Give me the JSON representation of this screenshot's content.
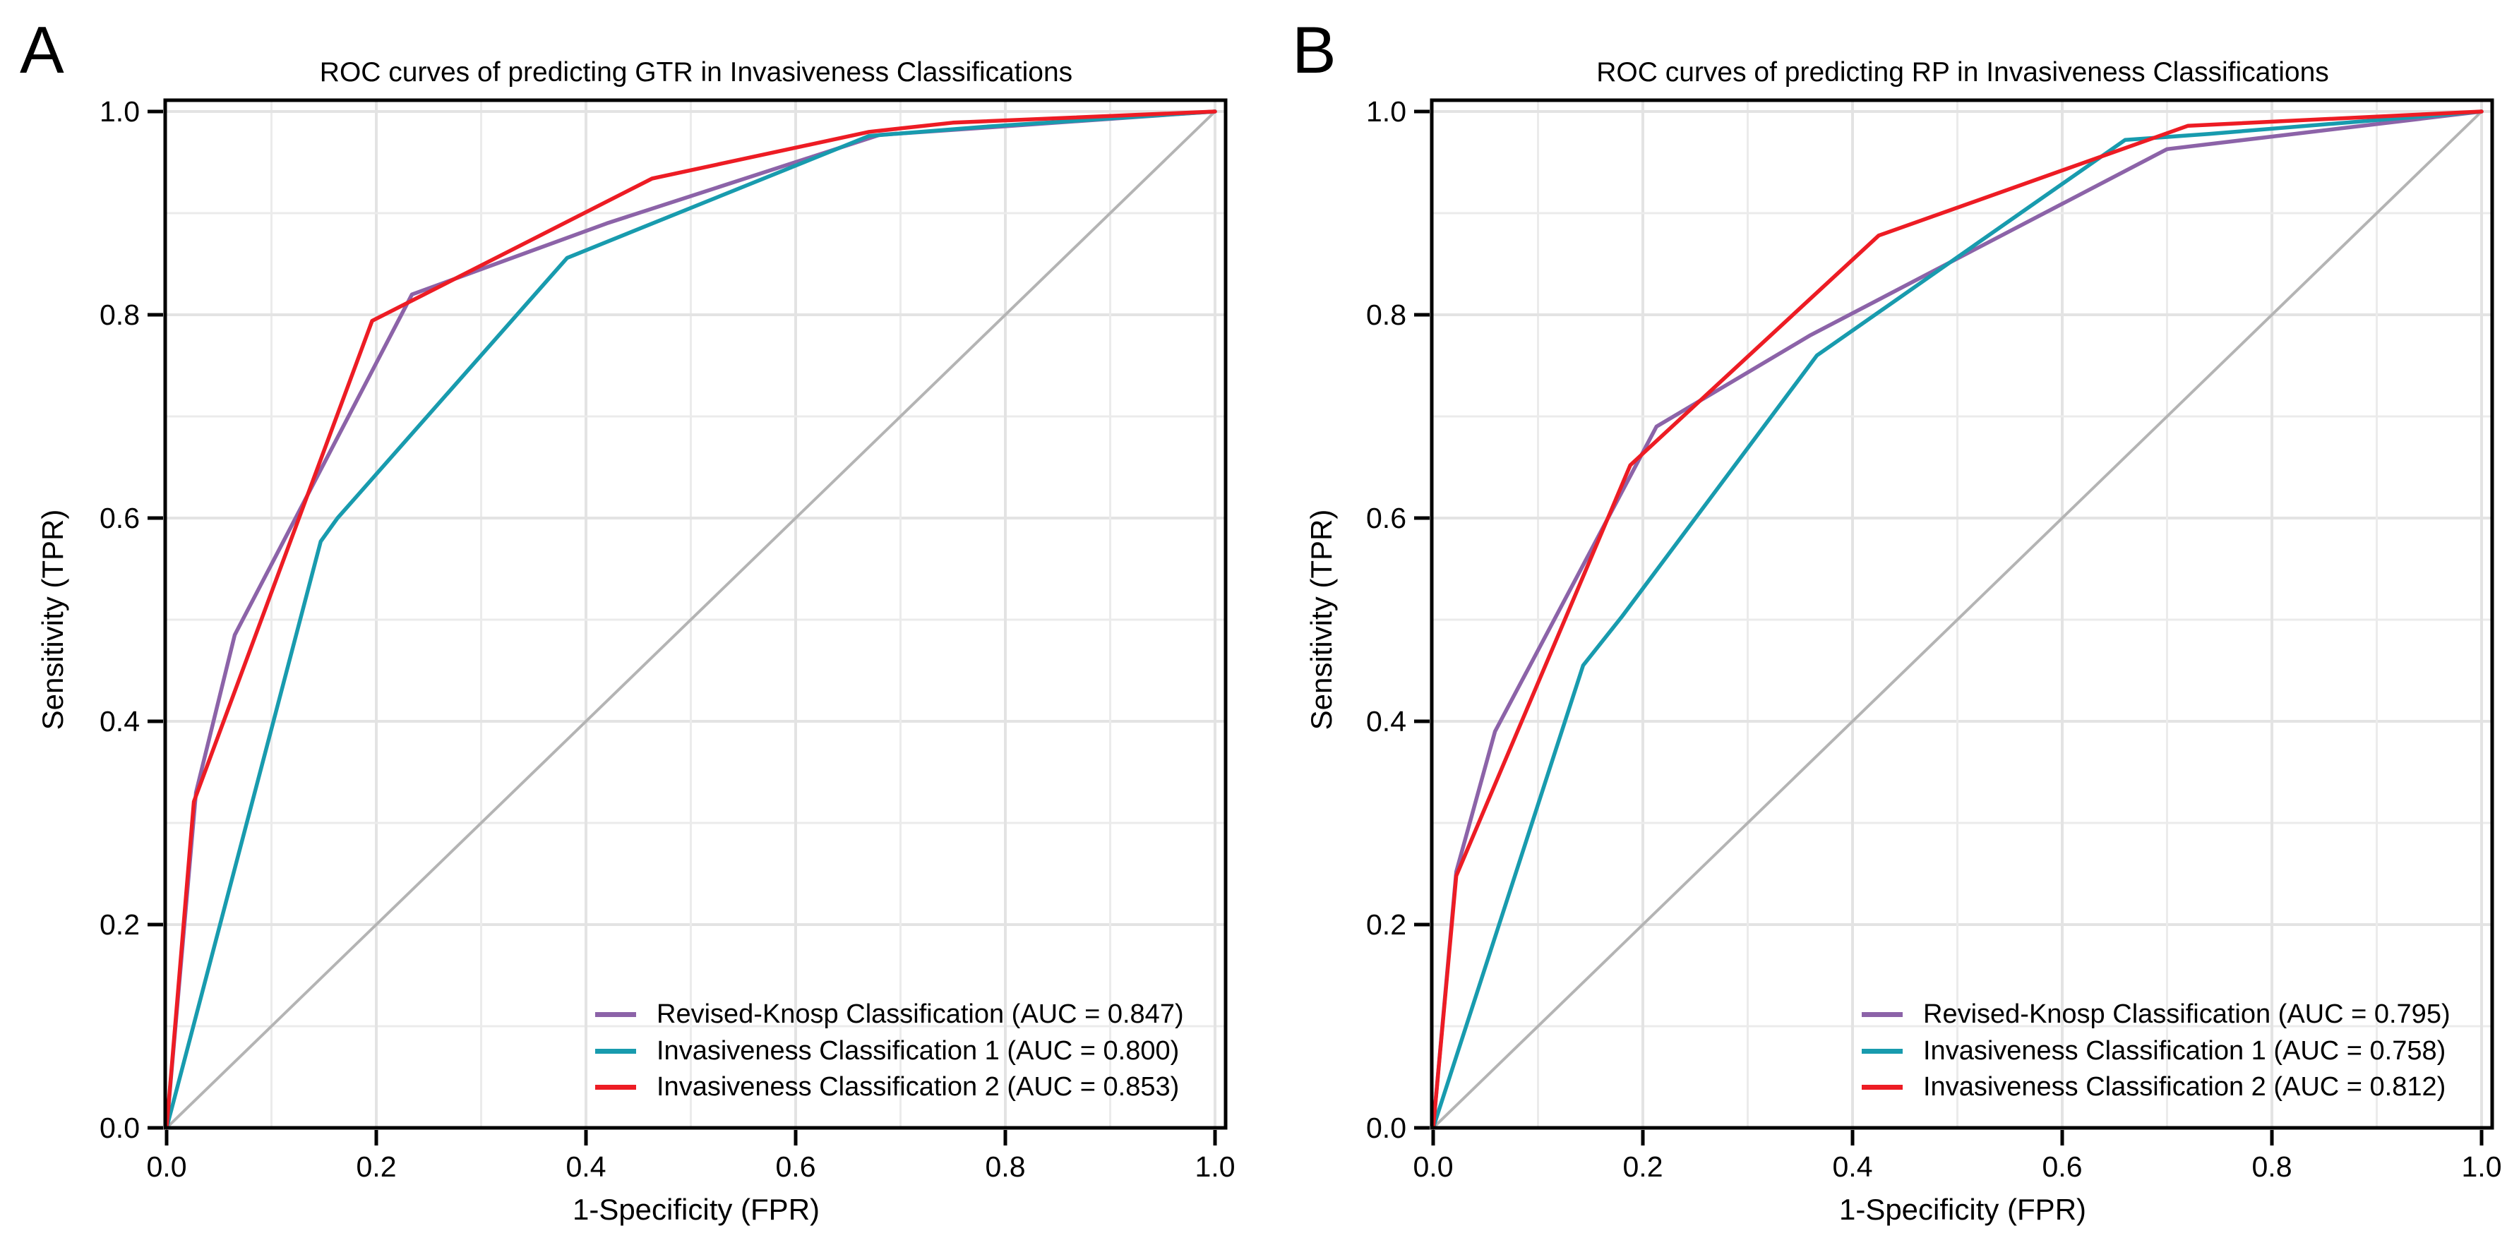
{
  "figure": {
    "panels": [
      {
        "letter": "A",
        "title": "ROC curves of predicting GTR in Invasiveness Classifications",
        "xlabel": "1-Specificity (FPR)",
        "ylabel": "Sensitivity (TPR)",
        "legend": [
          {
            "label": "Revised-Knosp Classification (AUC = 0.847)"
          },
          {
            "label": "Invasiveness Classification 1 (AUC = 0.800)"
          },
          {
            "label": "Invasiveness Classification 2 (AUC = 0.853)"
          }
        ]
      },
      {
        "letter": "B",
        "title": "ROC curves of predicting RP in Invasiveness Classifications",
        "xlabel": "1-Specificity (FPR)",
        "ylabel": "Sensitivity (TPR)",
        "legend": [
          {
            "label": "Revised-Knosp Classification (AUC = 0.795)"
          },
          {
            "label": "Invasiveness Classification 1 (AUC = 0.758)"
          },
          {
            "label": "Invasiveness Classification 2 (AUC = 0.812)"
          }
        ]
      }
    ]
  },
  "colors": {
    "revised_knosp": "#8c63a8",
    "invasiveness_1": "#189bae",
    "invasiveness_2": "#ed1c24",
    "reference_diagonal": "#b4b4b4",
    "gridline_major": "#e3e3e3",
    "gridline_minor": "#ebebeb",
    "frame": "#000000"
  },
  "chart_data": [
    {
      "type": "line",
      "title": "ROC curves of predicting GTR in Invasiveness Classifications",
      "xlabel": "1-Specificity (FPR)",
      "ylabel": "Sensitivity (TPR)",
      "xlim": [
        0,
        1
      ],
      "ylim": [
        0,
        1
      ],
      "x_tick_labels": [
        "0.0",
        "0.2",
        "0.4",
        "0.6",
        "0.8",
        "1.0"
      ],
      "y_tick_labels": [
        "0.0",
        "0.2",
        "0.4",
        "0.6",
        "0.8",
        "1.0"
      ],
      "grid": "on, 0.1 spacing",
      "legend_position": "lower right",
      "diagonal_reference": true,
      "series": [
        {
          "name": "Revised-Knosp Classification",
          "auc": 0.847,
          "color": "#8c63a8",
          "points": [
            [
              0,
              0
            ],
            [
              0.028,
              0.33
            ],
            [
              0.065,
              0.485
            ],
            [
              0.234,
              0.82
            ],
            [
              0.42,
              0.89
            ],
            [
              0.68,
              0.977
            ],
            [
              0.78,
              0.984
            ],
            [
              1,
              1
            ]
          ]
        },
        {
          "name": "Invasiveness Classification 1",
          "auc": 0.8,
          "color": "#189bae",
          "points": [
            [
              0,
              0
            ],
            [
              0.147,
              0.577
            ],
            [
              0.163,
              0.6
            ],
            [
              0.382,
              0.856
            ],
            [
              0.67,
              0.976
            ],
            [
              0.78,
              0.985
            ],
            [
              1,
              1
            ]
          ]
        },
        {
          "name": "Invasiveness Classification 2",
          "auc": 0.853,
          "color": "#ed1c24",
          "points": [
            [
              0,
              0
            ],
            [
              0.026,
              0.321
            ],
            [
              0.196,
              0.794
            ],
            [
              0.463,
              0.934
            ],
            [
              0.67,
              0.98
            ],
            [
              0.75,
              0.989
            ],
            [
              1,
              1
            ]
          ]
        }
      ]
    },
    {
      "type": "line",
      "title": "ROC curves of predicting RP in Invasiveness Classifications",
      "xlabel": "1-Specificity (FPR)",
      "ylabel": "Sensitivity (TPR)",
      "xlim": [
        0,
        1
      ],
      "ylim": [
        0,
        1
      ],
      "x_tick_labels": [
        "0.0",
        "0.2",
        "0.4",
        "0.6",
        "0.8",
        "1.0"
      ],
      "y_tick_labels": [
        "0.0",
        "0.2",
        "0.4",
        "0.6",
        "0.8",
        "1.0"
      ],
      "grid": "on, 0.1 spacing",
      "legend_position": "lower right",
      "diagonal_reference": true,
      "series": [
        {
          "name": "Revised-Knosp Classification",
          "auc": 0.795,
          "color": "#8c63a8",
          "points": [
            [
              0,
              0
            ],
            [
              0.022,
              0.252
            ],
            [
              0.059,
              0.39
            ],
            [
              0.213,
              0.69
            ],
            [
              0.36,
              0.78
            ],
            [
              0.7,
              0.963
            ],
            [
              1,
              1
            ]
          ]
        },
        {
          "name": "Invasiveness Classification 1",
          "auc": 0.758,
          "color": "#189bae",
          "points": [
            [
              0,
              0
            ],
            [
              0.143,
              0.455
            ],
            [
              0.18,
              0.503
            ],
            [
              0.366,
              0.76
            ],
            [
              0.66,
              0.972
            ],
            [
              0.74,
              0.978
            ],
            [
              1,
              1
            ]
          ]
        },
        {
          "name": "Invasiveness Classification 2",
          "auc": 0.812,
          "color": "#ed1c24",
          "points": [
            [
              0,
              0
            ],
            [
              0.022,
              0.248
            ],
            [
              0.188,
              0.652
            ],
            [
              0.425,
              0.878
            ],
            [
              0.72,
              0.986
            ],
            [
              1,
              1
            ]
          ]
        }
      ]
    }
  ]
}
